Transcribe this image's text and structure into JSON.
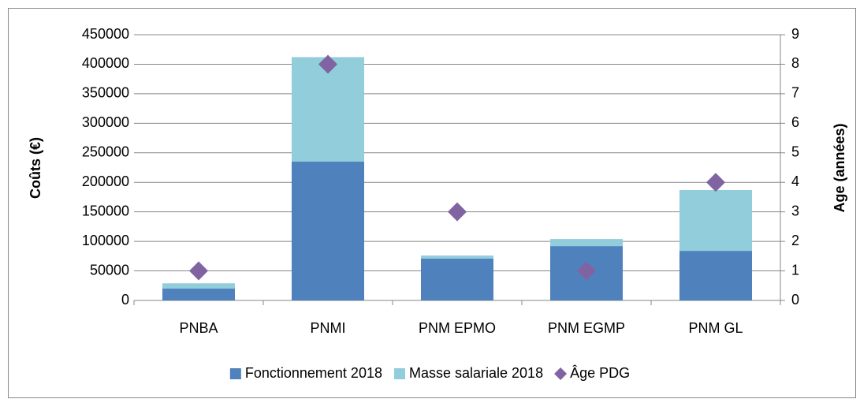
{
  "chart_data": {
    "type": "bar",
    "stacked": true,
    "categories": [
      "PNBA",
      "PNMI",
      "PNM EPMO",
      "PNM EGMP",
      "PNM GL"
    ],
    "series": [
      {
        "name": "Fonctionnement 2018",
        "color": "#4f81bd",
        "values": [
          20000,
          235000,
          71000,
          92000,
          84000
        ]
      },
      {
        "name": "Masse salariale 2018",
        "color": "#92cddc",
        "values": [
          9000,
          177000,
          5000,
          12000,
          103000
        ]
      },
      {
        "name": "Âge PDG",
        "type": "scatter",
        "axis": "y2",
        "color": "#8064a2",
        "values": [
          1,
          8,
          3,
          1,
          4
        ]
      }
    ],
    "ylabel": "Coûts (€)",
    "y2label": "Age (années)",
    "ylim": [
      0,
      450000
    ],
    "yticks": [
      0,
      50000,
      100000,
      150000,
      200000,
      250000,
      300000,
      350000,
      400000,
      450000
    ],
    "y2lim": [
      0,
      9
    ],
    "y2ticks": [
      0,
      1,
      2,
      3,
      4,
      5,
      6,
      7,
      8,
      9
    ],
    "grid": true,
    "legend": "bottom"
  }
}
